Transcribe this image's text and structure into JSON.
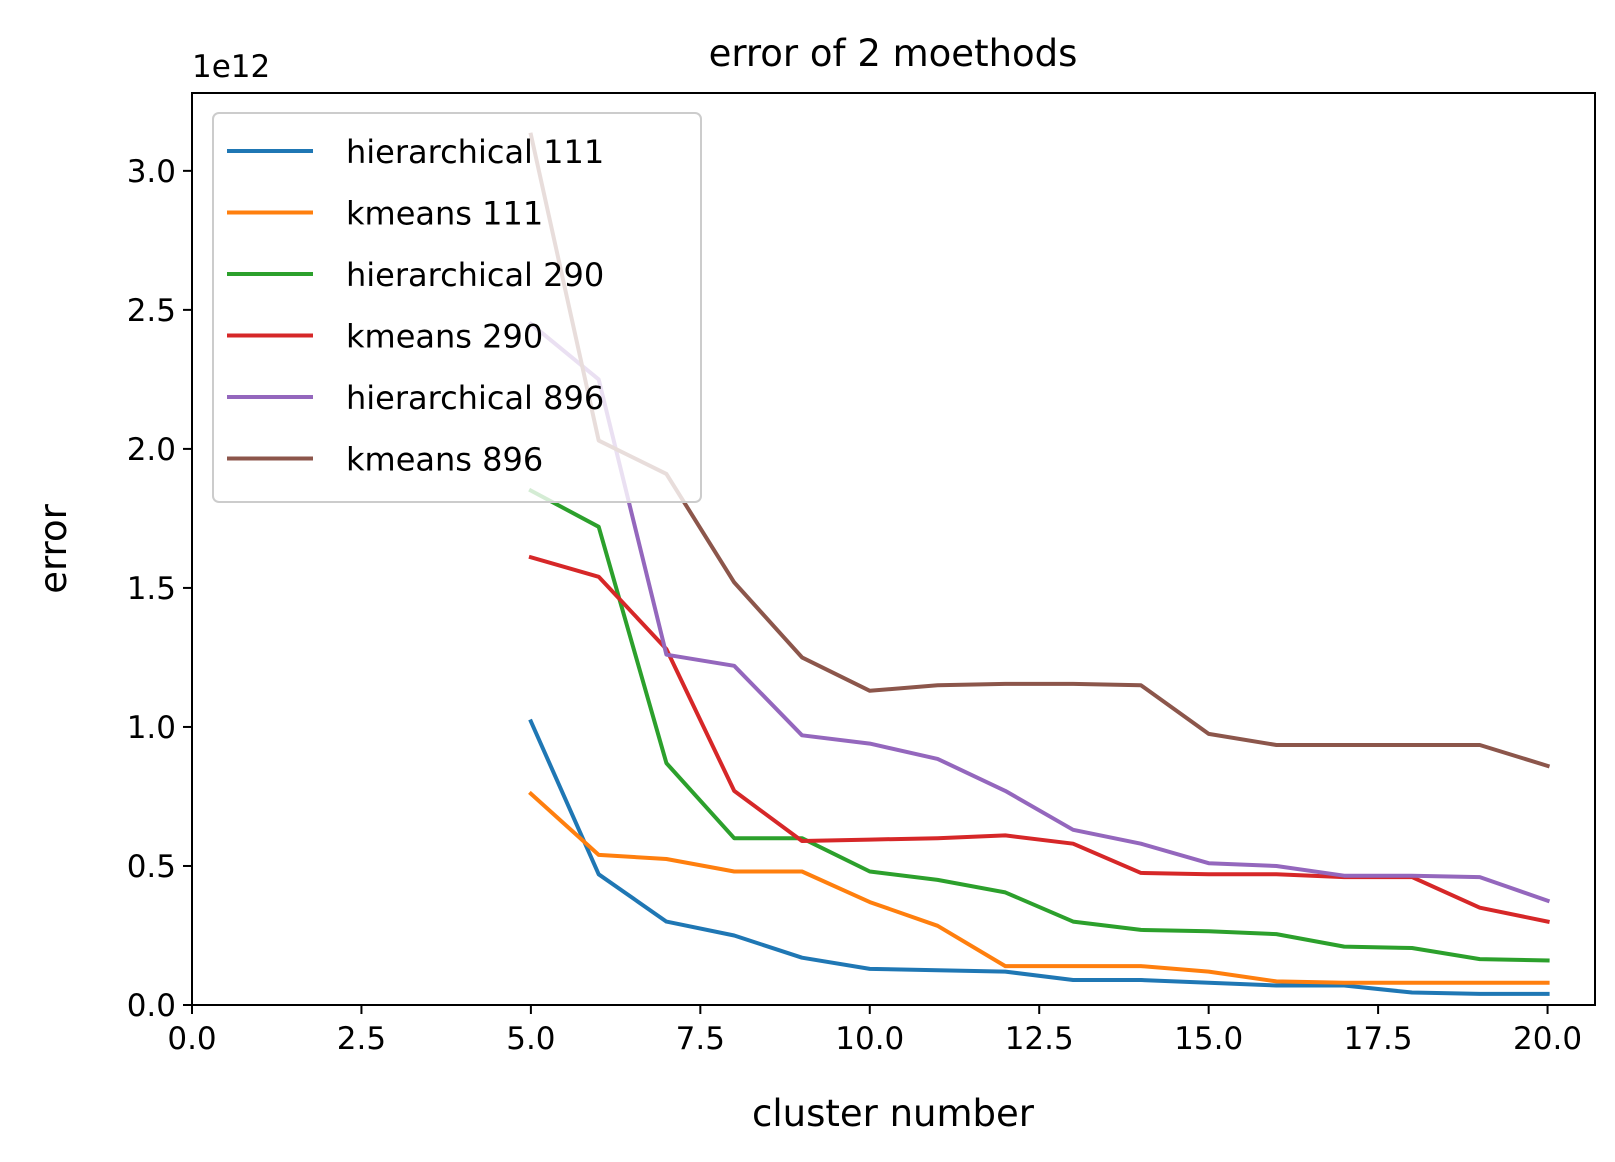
{
  "chart_data": {
    "type": "line",
    "title": "error of 2 moethods",
    "xlabel": "cluster number",
    "ylabel": "error",
    "offset_text": "1e12",
    "xlim": [
      0,
      20.7
    ],
    "ylim": [
      0,
      3.28
    ],
    "x_ticks": [
      0,
      2.5,
      5,
      7.5,
      10,
      12.5,
      15,
      17.5,
      20
    ],
    "x_tick_labels": [
      "0.0",
      "2.5",
      "5.0",
      "7.5",
      "10.0",
      "12.5",
      "15.0",
      "17.5",
      "20.0"
    ],
    "y_ticks": [
      0,
      0.5,
      1,
      1.5,
      2,
      2.5,
      3
    ],
    "y_tick_labels": [
      "0.0",
      "0.5",
      "1.0",
      "1.5",
      "2.0",
      "2.5",
      "3.0"
    ],
    "legend_position": "upper-left",
    "grid": false,
    "x": [
      5,
      6,
      7,
      8,
      9,
      10,
      11,
      12,
      13,
      14,
      15,
      16,
      17,
      18,
      19,
      20
    ],
    "series": [
      {
        "name": "hierarchical 111",
        "color": "#1f77b4",
        "values": [
          1.02,
          0.47,
          0.3,
          0.25,
          0.17,
          0.13,
          0.125,
          0.12,
          0.09,
          0.09,
          0.08,
          0.07,
          0.07,
          0.045,
          0.04,
          0.04
        ]
      },
      {
        "name": "kmeans 111",
        "color": "#ff7f0e",
        "values": [
          0.76,
          0.54,
          0.525,
          0.48,
          0.48,
          0.37,
          0.285,
          0.14,
          0.14,
          0.14,
          0.12,
          0.085,
          0.08,
          0.08,
          0.08,
          0.08
        ]
      },
      {
        "name": "hierarchical 290",
        "color": "#2ca02c",
        "values": [
          1.85,
          1.72,
          0.87,
          0.6,
          0.6,
          0.48,
          0.45,
          0.405,
          0.3,
          0.27,
          0.265,
          0.255,
          0.21,
          0.205,
          0.165,
          0.16
        ]
      },
      {
        "name": "kmeans 290",
        "color": "#d62728",
        "values": [
          1.61,
          1.54,
          1.28,
          0.77,
          0.59,
          0.595,
          0.6,
          0.61,
          0.58,
          0.475,
          0.47,
          0.47,
          0.46,
          0.46,
          0.35,
          0.3
        ]
      },
      {
        "name": "hierarchical 896",
        "color": "#9467bd",
        "values": [
          2.45,
          2.25,
          1.26,
          1.22,
          0.97,
          0.94,
          0.885,
          0.77,
          0.63,
          0.58,
          0.51,
          0.5,
          0.465,
          0.465,
          0.46,
          0.375
        ]
      },
      {
        "name": "kmeans 896",
        "color": "#8c564b",
        "values": [
          3.13,
          2.03,
          1.91,
          1.52,
          1.25,
          1.13,
          1.15,
          1.155,
          1.155,
          1.15,
          0.975,
          0.935,
          0.935,
          0.935,
          0.935,
          0.86
        ]
      }
    ]
  }
}
